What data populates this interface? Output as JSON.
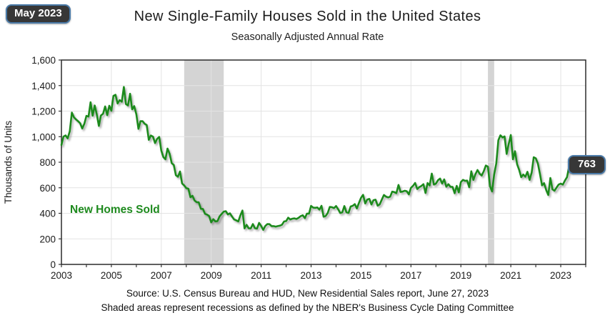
{
  "header": {
    "date_badge": "May 2023",
    "title": "New Single-Family Houses Sold in the United States",
    "subtitle": "Seasonally Adjusted Annual Rate"
  },
  "annotations": {
    "series_label": "New Homes Sold",
    "latest_value": "763",
    "latest_period": "May 2023"
  },
  "footer": {
    "source": "Source:  U.S. Census Bureau and HUD, New Residential Sales report, June 27, 2023",
    "note": "Shaded areas represent recessions as defined by the NBER's Business Cycle Dating Committee"
  },
  "colors": {
    "line": "#1e8a1e",
    "series_label": "#1e8a1e",
    "recession_band": "#d4d4d4",
    "grid": "#e3e3e3",
    "plot_border": "#2a2a2a",
    "tick": "#333333",
    "badge_bg": "#373737",
    "badge_border": "#4a7aa8"
  },
  "chart_data": {
    "type": "line",
    "title": "New Single-Family Houses Sold in the United States",
    "subtitle": "Seasonally Adjusted Annual Rate",
    "xlabel": "",
    "ylabel": "Thousands of Units",
    "xlim": [
      2003,
      2024
    ],
    "ylim": [
      0,
      1600
    ],
    "yticks": [
      0,
      200,
      400,
      600,
      800,
      1000,
      1200,
      1400,
      1600
    ],
    "xticks": [
      2003,
      2005,
      2007,
      2009,
      2011,
      2013,
      2015,
      2017,
      2019,
      2021,
      2023
    ],
    "minor_xtick_step": 1,
    "grid": true,
    "legend_position": "none",
    "recessions": [
      {
        "start": 2007.917,
        "end": 2009.5
      },
      {
        "start": 2020.083,
        "end": 2020.333
      }
    ],
    "series": [
      {
        "name": "New Homes Sold",
        "frequency": "monthly",
        "x_start": 2003.0,
        "x_step_years": 0.0833333,
        "values": [
          935,
          1001,
          1010,
          987,
          1043,
          1189,
          1152,
          1135,
          1121,
          1105,
          1064,
          1100,
          1163,
          1157,
          1270,
          1164,
          1244,
          1174,
          1084,
          1166,
          1180,
          1237,
          1168,
          1242,
          1203,
          1319,
          1328,
          1260,
          1286,
          1274,
          1389,
          1255,
          1244,
          1336,
          1214,
          1239,
          1174,
          1061,
          1121,
          1121,
          1101,
          1091,
          975,
          1009,
          1000,
          950,
          983,
          998,
          891,
          840,
          823,
          907,
          865,
          793,
          778,
          699,
          686,
          727,
          634,
          619,
          597,
          593,
          526,
          537,
          500,
          487,
          486,
          435,
          434,
          396,
          390,
          378,
          329,
          354,
          337,
          339,
          376,
          395,
          413,
          417,
          391,
          400,
          375,
          352,
          345,
          336,
          384,
          422,
          282,
          310,
          283,
          282,
          316,
          283,
          280,
          325,
          301,
          270,
          301,
          316,
          315,
          300,
          300,
          296,
          300,
          303,
          310,
          336,
          339,
          366,
          352,
          358,
          360,
          356,
          365,
          378,
          385,
          362,
          398,
          398,
          458,
          445,
          443,
          446,
          429,
          459,
          373,
          379,
          403,
          450,
          448,
          441,
          457,
          432,
          403,
          408,
          457,
          408,
          404,
          453,
          459,
          472,
          438,
          481,
          521,
          545,
          477,
          508,
          513,
          469,
          503,
          507,
          460,
          470,
          508,
          544,
          531,
          525,
          530,
          570,
          566,
          558,
          622,
          567,
          570,
          577,
          573,
          548,
          599,
          615,
          638,
          590,
          605,
          614,
          628,
          559,
          637,
          618,
          711,
          625,
          633,
          659,
          672,
          633,
          666,
          608,
          628,
          607,
          607,
          557,
          615,
          564,
          644,
          662,
          654,
          656,
          604,
          729,
          661,
          706,
          739,
          710,
          696,
          730,
          774,
          765,
          612,
          571,
          704,
          791,
          972,
          1011,
          994,
          1002,
          865,
          943,
          1013,
          823,
          886,
          785,
          740,
          683,
          704,
          686,
          725,
          662,
          717,
          839,
          831,
          790,
          709,
          619,
          636,
          582,
          543,
          677,
          588,
          577,
          602,
          625,
          633,
          625,
          656,
          683,
          763
        ],
        "last_point": {
          "period": "May 2023",
          "value": 763
        }
      }
    ]
  }
}
